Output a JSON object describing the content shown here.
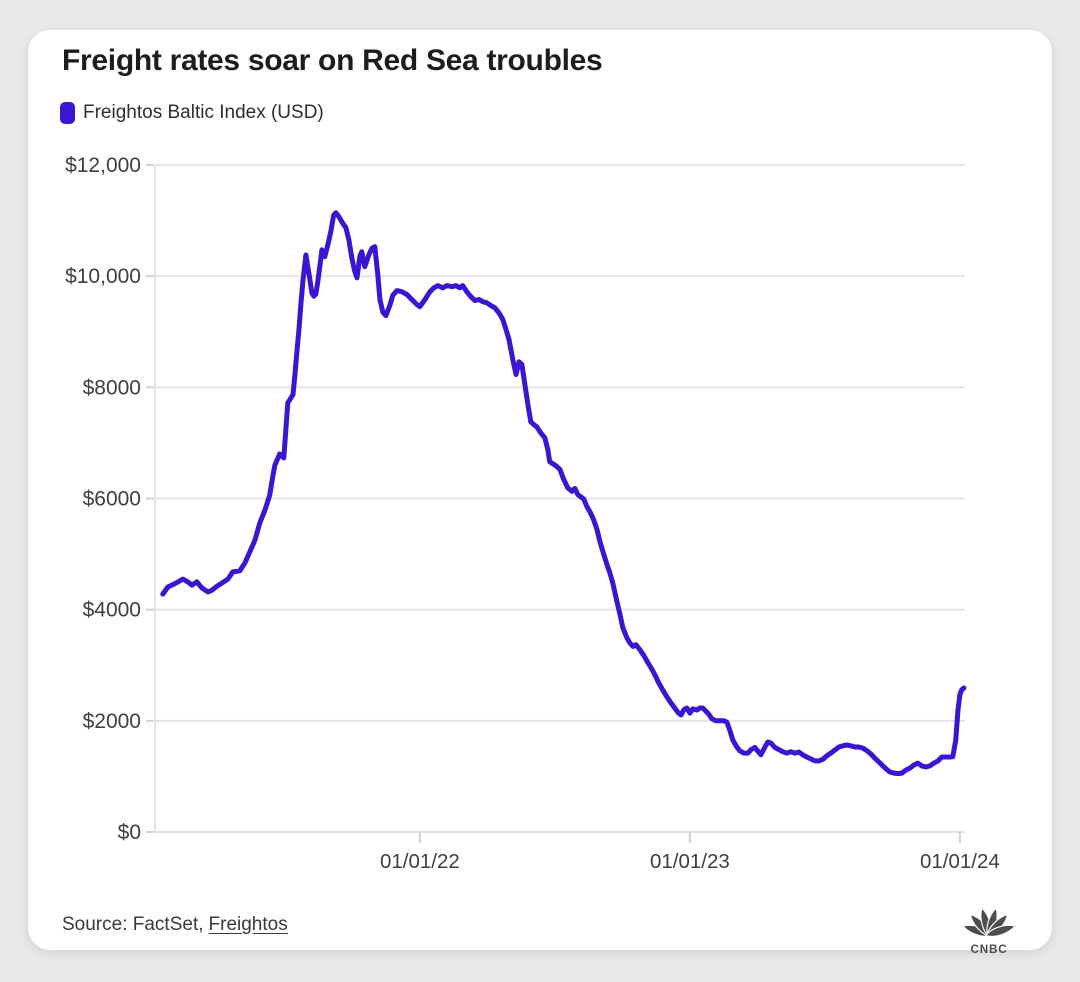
{
  "colors": {
    "page_bg": "#e9e9eb",
    "card_bg": "#ffffff",
    "line": "#3a16d3",
    "grid": "#e4e4e4",
    "tick": "#d2d2d2",
    "axis_label": "#3f3f3f"
  },
  "header": {
    "title": "Freight rates soar on Red Sea troubles"
  },
  "legend": {
    "swatch_color": "#3a16d3",
    "label": "Freightos Baltic Index (USD)"
  },
  "footer": {
    "source_prefix": "Source: FactSet,",
    "source_link": "Freightos",
    "logo_text": "CNBC",
    "logo_icon": "cnbc-peacock-icon"
  },
  "chart_data": {
    "type": "line",
    "title": "Freight rates soar on Red Sea troubles",
    "xlabel": "",
    "ylabel": "",
    "xlim": [
      2021.019,
      2024.019
    ],
    "ylim": [
      0,
      12000
    ],
    "grid": "horizontal",
    "legend_position": "top-left",
    "x_ticks": [
      {
        "value": 2022.0,
        "label": "01/01/22"
      },
      {
        "value": 2023.0,
        "label": "01/01/23"
      },
      {
        "value": 2024.0,
        "label": "01/01/24"
      }
    ],
    "y_ticks": [
      {
        "value": 0,
        "label": "$0"
      },
      {
        "value": 2000,
        "label": "$2000"
      },
      {
        "value": 4000,
        "label": "$4000"
      },
      {
        "value": 6000,
        "label": "$6000"
      },
      {
        "value": 8000,
        "label": "$8000"
      },
      {
        "value": 10000,
        "label": "$10,000"
      },
      {
        "value": 12000,
        "label": "$12,000"
      }
    ],
    "series": [
      {
        "name": "Freightos Baltic Index (USD)",
        "color": "#3a16d3",
        "points": [
          [
            2021.048,
            4280
          ],
          [
            2021.067,
            4410
          ],
          [
            2021.085,
            4450
          ],
          [
            2021.104,
            4500
          ],
          [
            2021.122,
            4550
          ],
          [
            2021.141,
            4500
          ],
          [
            2021.156,
            4440
          ],
          [
            2021.174,
            4500
          ],
          [
            2021.193,
            4390
          ],
          [
            2021.215,
            4320
          ],
          [
            2021.23,
            4350
          ],
          [
            2021.248,
            4420
          ],
          [
            2021.267,
            4480
          ],
          [
            2021.289,
            4550
          ],
          [
            2021.307,
            4680
          ],
          [
            2021.333,
            4700
          ],
          [
            2021.352,
            4840
          ],
          [
            2021.37,
            5040
          ],
          [
            2021.389,
            5250
          ],
          [
            2021.407,
            5560
          ],
          [
            2021.426,
            5790
          ],
          [
            2021.444,
            6060
          ],
          [
            2021.456,
            6420
          ],
          [
            2021.463,
            6600
          ],
          [
            2021.481,
            6800
          ],
          [
            2021.496,
            6730
          ],
          [
            2021.511,
            7720
          ],
          [
            2021.53,
            7870
          ],
          [
            2021.537,
            8220
          ],
          [
            2021.544,
            8620
          ],
          [
            2021.552,
            9030
          ],
          [
            2021.559,
            9480
          ],
          [
            2021.567,
            9930
          ],
          [
            2021.578,
            10380
          ],
          [
            2021.589,
            10050
          ],
          [
            2021.6,
            9700
          ],
          [
            2021.607,
            9640
          ],
          [
            2021.615,
            9680
          ],
          [
            2021.622,
            9900
          ],
          [
            2021.63,
            10200
          ],
          [
            2021.637,
            10475
          ],
          [
            2021.648,
            10350
          ],
          [
            2021.659,
            10560
          ],
          [
            2021.67,
            10800
          ],
          [
            2021.681,
            11100
          ],
          [
            2021.689,
            11140
          ],
          [
            2021.7,
            11070
          ],
          [
            2021.711,
            10980
          ],
          [
            2021.726,
            10870
          ],
          [
            2021.737,
            10650
          ],
          [
            2021.748,
            10330
          ],
          [
            2021.759,
            10080
          ],
          [
            2021.767,
            9970
          ],
          [
            2021.778,
            10360
          ],
          [
            2021.785,
            10440
          ],
          [
            2021.796,
            10170
          ],
          [
            2021.811,
            10380
          ],
          [
            2021.822,
            10500
          ],
          [
            2021.833,
            10530
          ],
          [
            2021.844,
            10030
          ],
          [
            2021.852,
            9580
          ],
          [
            2021.863,
            9350
          ],
          [
            2021.874,
            9290
          ],
          [
            2021.889,
            9480
          ],
          [
            2021.9,
            9660
          ],
          [
            2021.915,
            9740
          ],
          [
            2021.933,
            9720
          ],
          [
            2021.952,
            9670
          ],
          [
            2021.97,
            9580
          ],
          [
            2021.989,
            9490
          ],
          [
            2022.0,
            9450
          ],
          [
            2022.019,
            9580
          ],
          [
            2022.037,
            9720
          ],
          [
            2022.052,
            9790
          ],
          [
            2022.067,
            9830
          ],
          [
            2022.085,
            9790
          ],
          [
            2022.1,
            9830
          ],
          [
            2022.119,
            9810
          ],
          [
            2022.133,
            9830
          ],
          [
            2022.148,
            9790
          ],
          [
            2022.159,
            9830
          ],
          [
            2022.174,
            9720
          ],
          [
            2022.189,
            9630
          ],
          [
            2022.204,
            9560
          ],
          [
            2022.219,
            9580
          ],
          [
            2022.233,
            9540
          ],
          [
            2022.248,
            9520
          ],
          [
            2022.263,
            9470
          ],
          [
            2022.278,
            9430
          ],
          [
            2022.293,
            9340
          ],
          [
            2022.307,
            9220
          ],
          [
            2022.319,
            9040
          ],
          [
            2022.33,
            8860
          ],
          [
            2022.344,
            8500
          ],
          [
            2022.356,
            8230
          ],
          [
            2022.367,
            8460
          ],
          [
            2022.378,
            8410
          ],
          [
            2022.389,
            8050
          ],
          [
            2022.4,
            7690
          ],
          [
            2022.411,
            7380
          ],
          [
            2022.422,
            7330
          ],
          [
            2022.433,
            7290
          ],
          [
            2022.448,
            7180
          ],
          [
            2022.463,
            7090
          ],
          [
            2022.474,
            6880
          ],
          [
            2022.481,
            6660
          ],
          [
            2022.504,
            6590
          ],
          [
            2022.519,
            6520
          ],
          [
            2022.533,
            6340
          ],
          [
            2022.548,
            6190
          ],
          [
            2022.563,
            6130
          ],
          [
            2022.574,
            6180
          ],
          [
            2022.585,
            6070
          ],
          [
            2022.596,
            6030
          ],
          [
            2022.607,
            5990
          ],
          [
            2022.619,
            5850
          ],
          [
            2022.63,
            5760
          ],
          [
            2022.644,
            5610
          ],
          [
            2022.656,
            5440
          ],
          [
            2022.667,
            5220
          ],
          [
            2022.681,
            5000
          ],
          [
            2022.693,
            4810
          ],
          [
            2022.704,
            4660
          ],
          [
            2022.715,
            4470
          ],
          [
            2022.73,
            4140
          ],
          [
            2022.741,
            3920
          ],
          [
            2022.752,
            3670
          ],
          [
            2022.767,
            3490
          ],
          [
            2022.778,
            3400
          ],
          [
            2022.789,
            3340
          ],
          [
            2022.8,
            3370
          ],
          [
            2022.815,
            3280
          ],
          [
            2022.83,
            3170
          ],
          [
            2022.844,
            3050
          ],
          [
            2022.859,
            2930
          ],
          [
            2022.87,
            2830
          ],
          [
            2022.885,
            2680
          ],
          [
            2022.9,
            2550
          ],
          [
            2022.915,
            2430
          ],
          [
            2022.93,
            2320
          ],
          [
            2022.944,
            2230
          ],
          [
            2022.956,
            2150
          ],
          [
            2022.967,
            2105
          ],
          [
            2022.978,
            2200
          ],
          [
            2022.989,
            2230
          ],
          [
            2023.0,
            2140
          ],
          [
            2023.011,
            2215
          ],
          [
            2023.026,
            2195
          ],
          [
            2023.037,
            2230
          ],
          [
            2023.048,
            2230
          ],
          [
            2023.059,
            2175
          ],
          [
            2023.07,
            2120
          ],
          [
            2023.081,
            2040
          ],
          [
            2023.096,
            2000
          ],
          [
            2023.126,
            2000
          ],
          [
            2023.137,
            1975
          ],
          [
            2023.148,
            1830
          ],
          [
            2023.159,
            1655
          ],
          [
            2023.174,
            1530
          ],
          [
            2023.185,
            1460
          ],
          [
            2023.2,
            1420
          ],
          [
            2023.215,
            1420
          ],
          [
            2023.226,
            1480
          ],
          [
            2023.241,
            1520
          ],
          [
            2023.256,
            1430
          ],
          [
            2023.263,
            1390
          ],
          [
            2023.278,
            1530
          ],
          [
            2023.289,
            1620
          ],
          [
            2023.3,
            1600
          ],
          [
            2023.315,
            1520
          ],
          [
            2023.33,
            1480
          ],
          [
            2023.344,
            1445
          ],
          [
            2023.359,
            1420
          ],
          [
            2023.374,
            1445
          ],
          [
            2023.389,
            1420
          ],
          [
            2023.404,
            1440
          ],
          [
            2023.419,
            1385
          ],
          [
            2023.433,
            1350
          ],
          [
            2023.448,
            1315
          ],
          [
            2023.463,
            1280
          ],
          [
            2023.478,
            1280
          ],
          [
            2023.493,
            1310
          ],
          [
            2023.507,
            1370
          ],
          [
            2023.522,
            1420
          ],
          [
            2023.537,
            1475
          ],
          [
            2023.552,
            1530
          ],
          [
            2023.567,
            1550
          ],
          [
            2023.581,
            1565
          ],
          [
            2023.596,
            1550
          ],
          [
            2023.611,
            1530
          ],
          [
            2023.626,
            1530
          ],
          [
            2023.641,
            1510
          ],
          [
            2023.656,
            1460
          ],
          [
            2023.67,
            1405
          ],
          [
            2023.685,
            1330
          ],
          [
            2023.7,
            1260
          ],
          [
            2023.715,
            1190
          ],
          [
            2023.73,
            1120
          ],
          [
            2023.741,
            1080
          ],
          [
            2023.756,
            1060
          ],
          [
            2023.77,
            1050
          ],
          [
            2023.785,
            1060
          ],
          [
            2023.8,
            1115
          ],
          [
            2023.815,
            1150
          ],
          [
            2023.83,
            1205
          ],
          [
            2023.844,
            1240
          ],
          [
            2023.859,
            1190
          ],
          [
            2023.874,
            1170
          ],
          [
            2023.889,
            1190
          ],
          [
            2023.904,
            1240
          ],
          [
            2023.919,
            1280
          ],
          [
            2023.933,
            1350
          ],
          [
            2023.963,
            1350
          ],
          [
            2023.974,
            1355
          ],
          [
            2023.985,
            1660
          ],
          [
            2023.993,
            2200
          ],
          [
            2024.0,
            2470
          ],
          [
            2024.007,
            2560
          ],
          [
            2024.015,
            2590
          ]
        ]
      }
    ]
  }
}
